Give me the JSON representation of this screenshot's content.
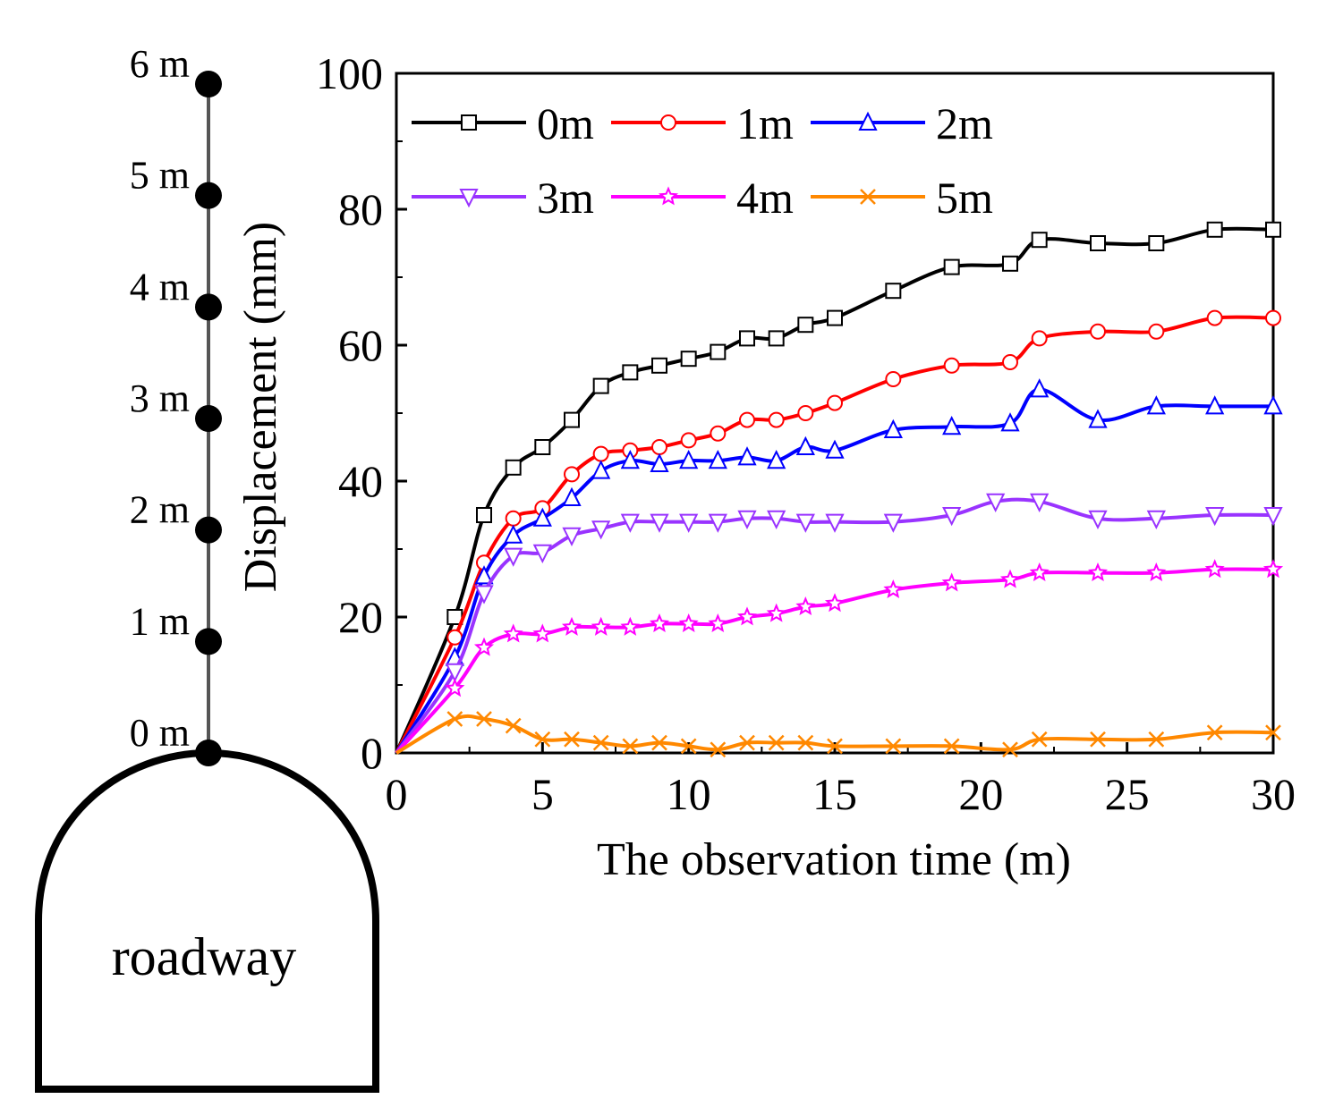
{
  "chart_data": {
    "type": "line",
    "xlabel": "The observation time (m)",
    "ylabel": "Displacement (mm)",
    "xlim": [
      0,
      30
    ],
    "ylim": [
      0,
      100
    ],
    "xticks": [
      0,
      5,
      10,
      15,
      20,
      25,
      30
    ],
    "yticks": [
      0,
      20,
      40,
      60,
      80,
      100
    ],
    "legend_position": "top-left",
    "legend_columns": 3,
    "series": [
      {
        "name": "0m",
        "color": "#000000",
        "marker": "square",
        "x": [
          0,
          2,
          3,
          4,
          5,
          6,
          7,
          8,
          9,
          10,
          11,
          12,
          13,
          14,
          15,
          17,
          19,
          21,
          22,
          24,
          26,
          28,
          30
        ],
        "y": [
          0,
          20,
          35,
          42,
          45,
          49,
          54,
          56,
          57,
          58,
          59,
          61,
          61,
          63,
          64,
          68,
          71.5,
          72,
          75.5,
          75,
          75,
          77,
          77
        ]
      },
      {
        "name": "1m",
        "color": "#ff0000",
        "marker": "circle",
        "x": [
          0,
          2,
          3,
          4,
          5,
          6,
          7,
          8,
          9,
          10,
          11,
          12,
          13,
          14,
          15,
          17,
          19,
          21,
          22,
          24,
          26,
          28,
          30
        ],
        "y": [
          0,
          17,
          28,
          34.5,
          36,
          41,
          44,
          44.5,
          45,
          46,
          47,
          49,
          49,
          50,
          51.5,
          55,
          57,
          57.5,
          61,
          62,
          62,
          64,
          64
        ]
      },
      {
        "name": "2m",
        "color": "#0000ff",
        "marker": "triangle-up",
        "x": [
          0,
          2,
          3,
          4,
          5,
          6,
          7,
          8,
          9,
          10,
          11,
          12,
          13,
          14,
          15,
          17,
          19,
          21,
          22,
          24,
          26,
          28,
          30
        ],
        "y": [
          0,
          14,
          26,
          32,
          34.5,
          37.5,
          41.5,
          43,
          42.5,
          43,
          43,
          43.5,
          43,
          45,
          44.5,
          47.5,
          48,
          48.5,
          53.5,
          49,
          51,
          51,
          51
        ]
      },
      {
        "name": "3m",
        "color": "#9933ff",
        "marker": "triangle-down",
        "x": [
          0,
          2,
          3,
          4,
          5,
          6,
          7,
          8,
          9,
          10,
          11,
          12,
          13,
          14,
          15,
          17,
          19,
          20.5,
          22,
          24,
          26,
          28,
          30
        ],
        "y": [
          0,
          12,
          23.5,
          29,
          29.5,
          32,
          33,
          34,
          34,
          34,
          34,
          34.5,
          34.5,
          34,
          34,
          34,
          35,
          37,
          37,
          34.5,
          34.5,
          35,
          35
        ]
      },
      {
        "name": "4m",
        "color": "#ff00ff",
        "marker": "star",
        "x": [
          0,
          2,
          3,
          4,
          5,
          6,
          7,
          8,
          9,
          10,
          11,
          12,
          13,
          14,
          15,
          17,
          19,
          21,
          22,
          24,
          26,
          28,
          30
        ],
        "y": [
          0,
          9.5,
          15.5,
          17.5,
          17.5,
          18.5,
          18.5,
          18.5,
          19,
          19,
          19,
          20,
          20.5,
          21.5,
          22,
          24,
          25,
          25.5,
          26.5,
          26.5,
          26.5,
          27,
          27
        ]
      },
      {
        "name": "5m",
        "color": "#ff8800",
        "marker": "x",
        "x": [
          0,
          2,
          3,
          4,
          5,
          6,
          7,
          8,
          9,
          10,
          11,
          12,
          13,
          14,
          15,
          17,
          19,
          21,
          22,
          24,
          26,
          28,
          30
        ],
        "y": [
          0,
          5,
          5,
          4,
          2,
          2,
          1.5,
          1,
          1.5,
          1,
          0.5,
          1.5,
          1.5,
          1.5,
          1,
          1,
          1,
          0.5,
          2,
          2,
          2,
          3,
          3
        ]
      }
    ]
  },
  "schematic": {
    "depth_labels": [
      "6 m",
      "5 m",
      "4 m",
      "3 m",
      "2 m",
      "1 m",
      "0 m"
    ],
    "roadway_label": "roadway"
  }
}
